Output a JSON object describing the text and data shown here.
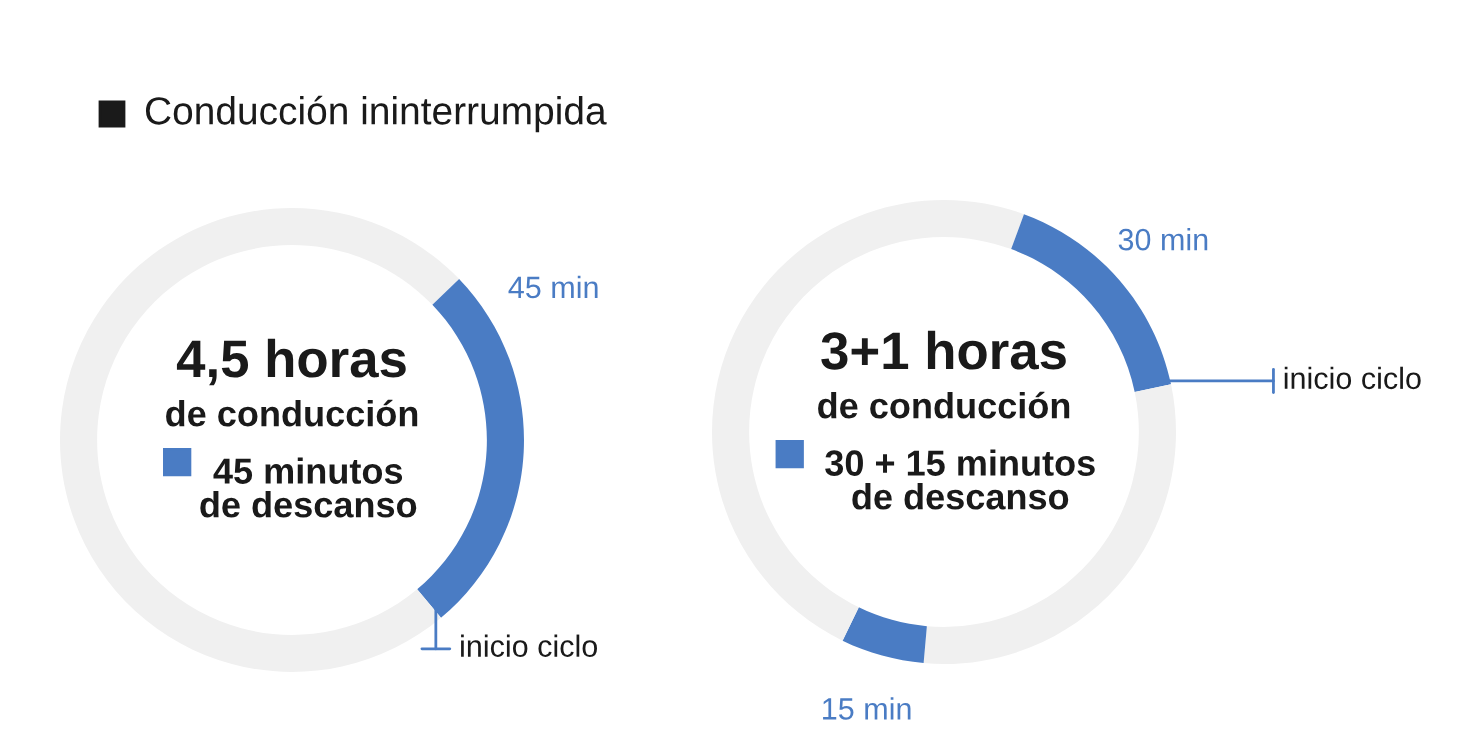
{
  "chart_data": [
    {
      "type": "donut",
      "title": "Conducción ininterrumpida",
      "categories": [
        null,
        "45 min",
        null
      ],
      "values": [
        12.8,
        26.1,
        61.1
      ],
      "colors": [
        "#f0f0f0",
        "#4a7cc4",
        "#f0f0f0"
      ],
      "annotations": [
        "4,5 horas",
        "de conducción",
        "45 minutos\nde descanso",
        "inicio ciclo"
      ]
    },
    {
      "type": "donut",
      "categories": [
        null,
        "30 min",
        null,
        "15 min",
        null
      ],
      "values": [
        5.6,
        16.1,
        29.7,
        5.8,
        42.8
      ],
      "colors": [
        "#f0f0f0",
        "#4a7cc4",
        "#f0f0f0",
        "#4a7cc4",
        "#f0f0f0"
      ],
      "annotations": [
        "3+1 horas",
        "de conducción",
        "30 + 15 minutos\nde descanso",
        "inicio ciclo"
      ]
    }
  ]
}
